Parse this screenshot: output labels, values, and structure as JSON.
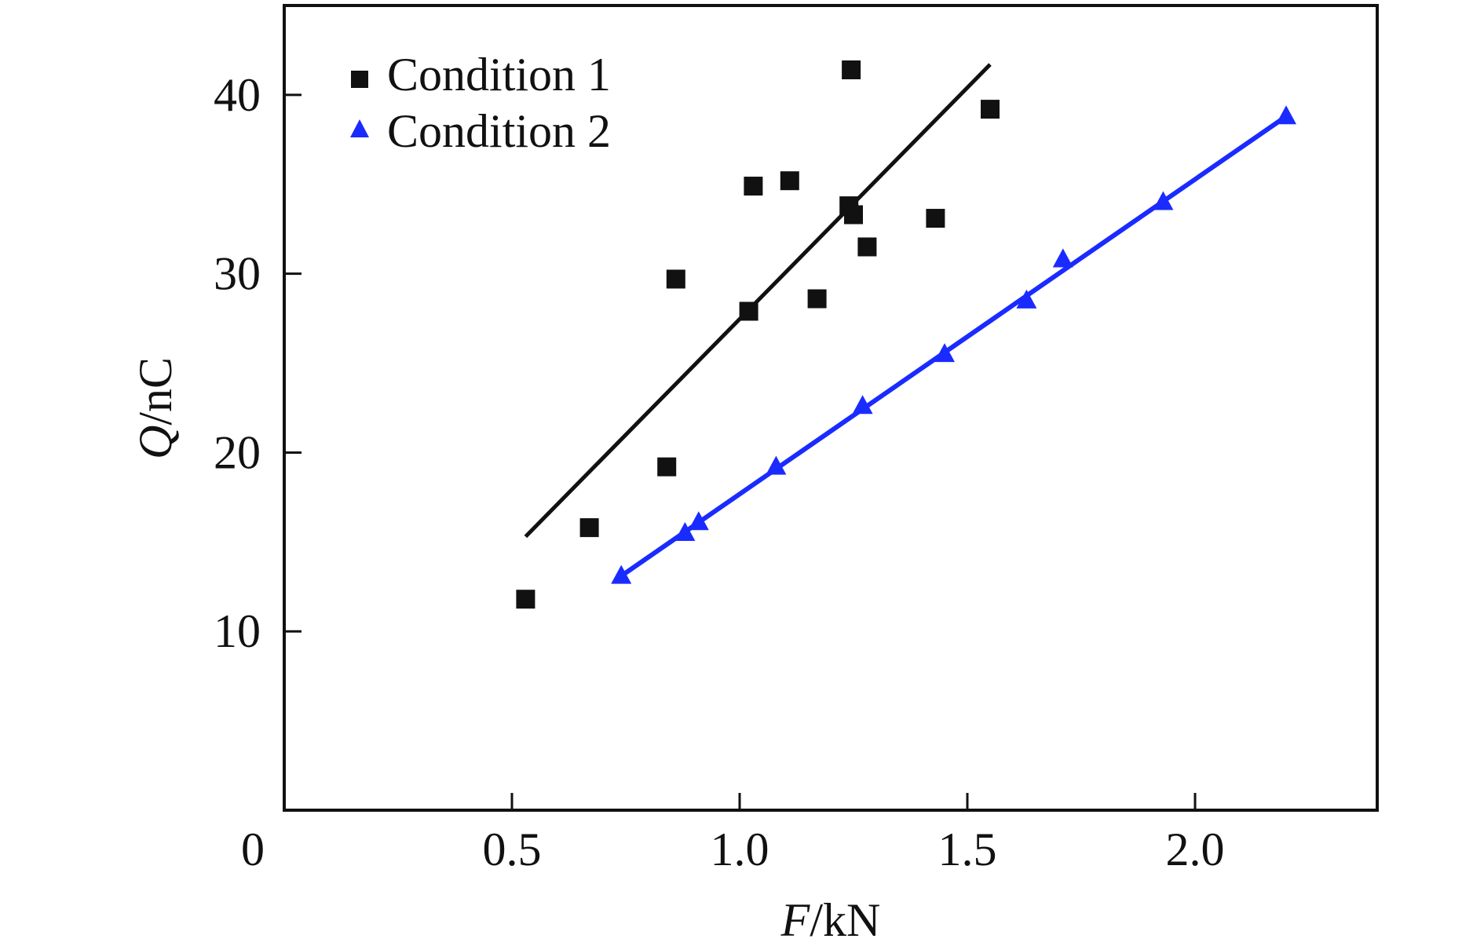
{
  "chart_data": {
    "type": "scatter",
    "xlabel": {
      "var": "F",
      "unit": "/kN"
    },
    "ylabel": {
      "var": "Q",
      "unit": "/nC"
    },
    "xlim": [
      0,
      2.4
    ],
    "ylim": [
      0,
      45
    ],
    "xticks": [
      0.5,
      1.0,
      1.5,
      2.0
    ],
    "xtick_labels": [
      "0.5",
      "1.0",
      "1.5",
      "2.0"
    ],
    "yticks": [
      10,
      20,
      30,
      40
    ],
    "ytick_labels": [
      "10",
      "20",
      "30",
      "40"
    ],
    "origin_label": "0",
    "grid": false,
    "legend_position": "top-left",
    "series": [
      {
        "name": "Condition 1",
        "marker": "square",
        "color": "#111111",
        "points": [
          [
            0.53,
            11.8
          ],
          [
            0.67,
            15.8
          ],
          [
            0.84,
            19.2
          ],
          [
            0.86,
            29.7
          ],
          [
            1.02,
            27.9
          ],
          [
            1.03,
            34.9
          ],
          [
            1.11,
            35.2
          ],
          [
            1.17,
            28.6
          ],
          [
            1.24,
            33.8
          ],
          [
            1.25,
            33.3
          ],
          [
            1.245,
            41.4
          ],
          [
            1.28,
            31.5
          ],
          [
            1.43,
            33.1
          ],
          [
            1.55,
            39.2
          ]
        ],
        "fit_line": [
          [
            0.53,
            15.3
          ],
          [
            1.55,
            41.7
          ]
        ]
      },
      {
        "name": "Condition 2",
        "marker": "triangle",
        "color": "#1a2bff",
        "points": [
          [
            0.74,
            13.1
          ],
          [
            0.88,
            15.5
          ],
          [
            0.91,
            16.1
          ],
          [
            1.08,
            19.2
          ],
          [
            1.27,
            22.6
          ],
          [
            1.45,
            25.5
          ],
          [
            1.63,
            28.5
          ],
          [
            1.71,
            30.8
          ],
          [
            1.93,
            34.0
          ],
          [
            2.2,
            38.8
          ]
        ],
        "fit_line": [
          [
            0.74,
            13.1
          ],
          [
            2.2,
            38.8
          ]
        ]
      }
    ]
  }
}
